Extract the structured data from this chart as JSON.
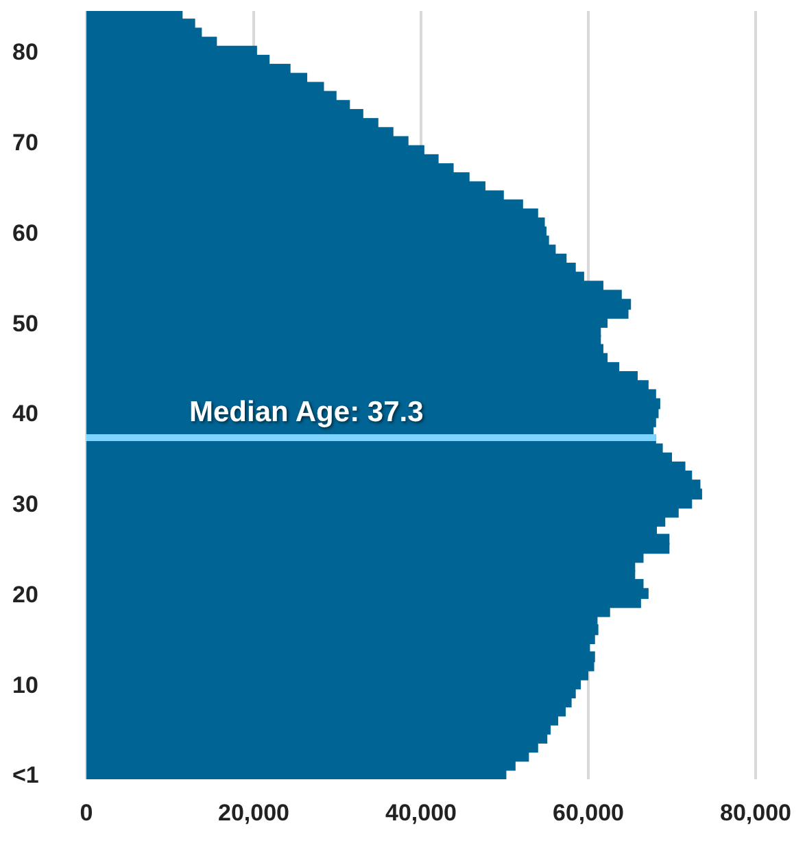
{
  "chart_data": {
    "type": "bar",
    "orientation": "horizontal",
    "x": [
      84,
      83,
      82,
      81,
      80,
      79,
      78,
      77,
      76,
      75,
      74,
      73,
      72,
      71,
      70,
      69,
      68,
      67,
      66,
      65,
      64,
      63,
      62,
      61,
      60,
      59,
      58,
      57,
      56,
      55,
      54,
      53,
      52,
      51,
      50,
      49,
      48,
      47,
      46,
      45,
      44,
      43,
      42,
      41,
      40,
      39,
      38,
      37,
      36,
      35,
      34,
      33,
      32,
      31,
      30,
      29,
      28,
      27,
      26,
      25,
      24,
      23,
      22,
      21,
      20,
      19,
      18,
      17,
      16,
      15,
      14,
      13,
      12,
      11,
      10,
      9,
      8,
      7,
      6,
      5,
      4,
      3,
      2,
      1,
      0
    ],
    "values": [
      11500,
      13000,
      13800,
      15600,
      20400,
      21900,
      24400,
      26400,
      28400,
      29900,
      31500,
      33100,
      34900,
      36700,
      38500,
      40400,
      42100,
      43900,
      45800,
      47700,
      49900,
      52200,
      54000,
      54800,
      55000,
      55300,
      56100,
      57400,
      58500,
      59500,
      61800,
      64000,
      65100,
      64800,
      62300,
      61500,
      61500,
      61800,
      62300,
      63700,
      65900,
      67200,
      68100,
      68600,
      68400,
      68100,
      67800,
      68100,
      68900,
      70000,
      71600,
      72400,
      73400,
      73600,
      72400,
      70800,
      69200,
      68200,
      69700,
      69700,
      66600,
      65600,
      65600,
      66600,
      67200,
      66300,
      62600,
      61100,
      61200,
      60800,
      60200,
      60800,
      60700,
      60000,
      59100,
      58500,
      58000,
      57300,
      56400,
      55500,
      55100,
      54000,
      52900,
      51300,
      50200
    ],
    "color": "#006494",
    "xlim": [
      0,
      80000
    ],
    "xticks": [
      {
        "value": 0,
        "label": "0"
      },
      {
        "value": 20000,
        "label": "20,000"
      },
      {
        "value": 40000,
        "label": "40,000"
      },
      {
        "value": 60000,
        "label": "60,000"
      },
      {
        "value": 80000,
        "label": "80,000"
      }
    ],
    "ylim": [
      -0.5,
      84.5
    ],
    "yticks": [
      {
        "value": 0,
        "label": "<1"
      },
      10,
      20,
      30,
      40,
      50,
      60,
      70,
      80
    ],
    "grid": "x",
    "ref_lines": [
      {
        "axis": "y",
        "value": 37.3,
        "label": "Median Age: 37.3",
        "color": "#7fd4ff"
      }
    ]
  }
}
